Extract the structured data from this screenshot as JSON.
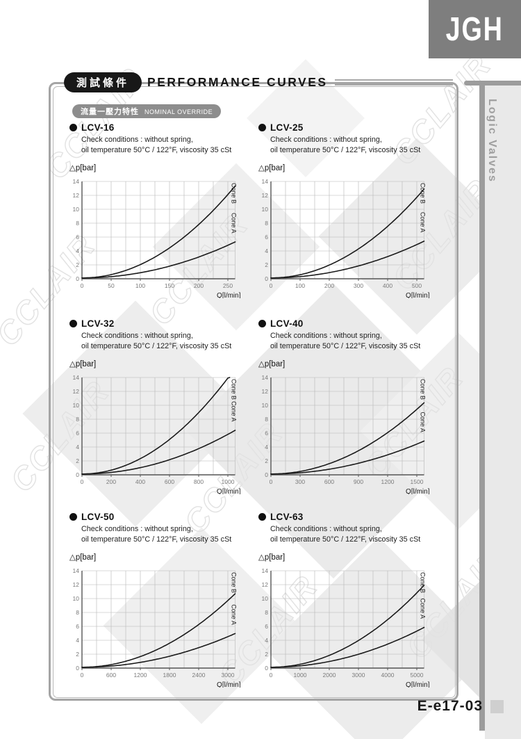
{
  "page": {
    "logo_text": "JGH",
    "sidebar_label": "Logic Valves",
    "doc_code": "E-e17-03",
    "watermark": "CCLAIR"
  },
  "header": {
    "tag_cn": "測試條件",
    "title": "PERFORMANCE CURVES",
    "subtag_cn": "流量一壓力特性",
    "subtag_en": "NOMINAL OVERRIDE"
  },
  "chart_common": {
    "check_line1": "Check conditions : without spring,",
    "check_line2": "oil temperature 50°C / 122°F, viscosity 35 cSt",
    "ylabel": "△p[bar]",
    "xlabel": "Q[l/min]",
    "y_ticks": [
      0,
      2,
      4,
      6,
      8,
      10,
      12,
      14
    ],
    "ylim": [
      0,
      14
    ],
    "curve_color": "#1a1a1a",
    "grid_color": "#b5b5b5",
    "axis_color": "#555555",
    "tick_label_color": "#7a7a7a",
    "cone_label_color": "#222222"
  },
  "chart_data": [
    {
      "type": "line",
      "title": "LCV-16",
      "xlabel": "Q[l/min]",
      "ylabel": "△p[bar]",
      "ylim": [
        0,
        14
      ],
      "grid": true,
      "x": [
        0,
        50,
        100,
        150,
        200,
        250
      ],
      "series": [
        {
          "name": "Cone B",
          "values": [
            0,
            0.5,
            1.9,
            4.3,
            7.7,
            12.0
          ]
        },
        {
          "name": "Cone A",
          "values": [
            0,
            0.2,
            0.8,
            1.7,
            3.0,
            4.7
          ]
        }
      ]
    },
    {
      "type": "line",
      "title": "LCV-25",
      "xlabel": "Q[l/min]",
      "ylabel": "△p[bar]",
      "ylim": [
        0,
        14
      ],
      "grid": true,
      "x": [
        0,
        100,
        200,
        300,
        400,
        500
      ],
      "series": [
        {
          "name": "Cone B",
          "values": [
            0,
            0.5,
            1.9,
            4.2,
            7.4,
            11.6
          ]
        },
        {
          "name": "Cone A",
          "values": [
            0,
            0.2,
            0.8,
            1.7,
            3.1,
            4.8
          ]
        }
      ]
    },
    {
      "type": "line",
      "title": "LCV-32",
      "xlabel": "Q[l/min]",
      "ylabel": "△p[bar]",
      "ylim": [
        0,
        14
      ],
      "grid": true,
      "x": [
        0,
        200,
        400,
        600,
        800,
        1000
      ],
      "series": [
        {
          "name": "Cone B",
          "values": [
            0,
            0.6,
            2.2,
            5.0,
            8.8,
            13.8
          ]
        },
        {
          "name": "Cone A",
          "values": [
            0,
            0.2,
            0.9,
            2.1,
            3.6,
            5.7
          ]
        }
      ]
    },
    {
      "type": "line",
      "title": "LCV-40",
      "xlabel": "Q[l/min]",
      "ylabel": "△p[bar]",
      "ylim": [
        0,
        14
      ],
      "grid": true,
      "x": [
        0,
        300,
        600,
        900,
        1200,
        1500
      ],
      "series": [
        {
          "name": "Cone B",
          "values": [
            0,
            0.4,
            1.5,
            3.3,
            6.0,
            9.3
          ]
        },
        {
          "name": "Cone A",
          "values": [
            0,
            0.2,
            0.7,
            1.5,
            2.8,
            4.3
          ]
        }
      ]
    },
    {
      "type": "line",
      "title": "LCV-50",
      "xlabel": "Q[l/min]",
      "ylabel": "△p[bar]",
      "ylim": [
        0,
        14
      ],
      "grid": true,
      "x": [
        0,
        600,
        1200,
        1800,
        2400,
        3000
      ],
      "series": [
        {
          "name": "Cone B",
          "values": [
            0,
            0.4,
            1.5,
            3.5,
            6.1,
            9.6
          ]
        },
        {
          "name": "Cone A",
          "values": [
            0,
            0.2,
            0.7,
            1.6,
            2.8,
            4.4
          ]
        }
      ]
    },
    {
      "type": "line",
      "title": "LCV-63",
      "xlabel": "Q[l/min]",
      "ylabel": "△p[bar]",
      "ylim": [
        0,
        14
      ],
      "grid": true,
      "x": [
        0,
        1000,
        2000,
        3000,
        4000,
        5000
      ],
      "series": [
        {
          "name": "Cone B",
          "values": [
            0,
            0.4,
            1.7,
            3.9,
            6.8,
            10.7
          ]
        },
        {
          "name": "Cone A",
          "values": [
            0,
            0.2,
            0.8,
            1.9,
            3.3,
            5.2
          ]
        }
      ]
    }
  ]
}
